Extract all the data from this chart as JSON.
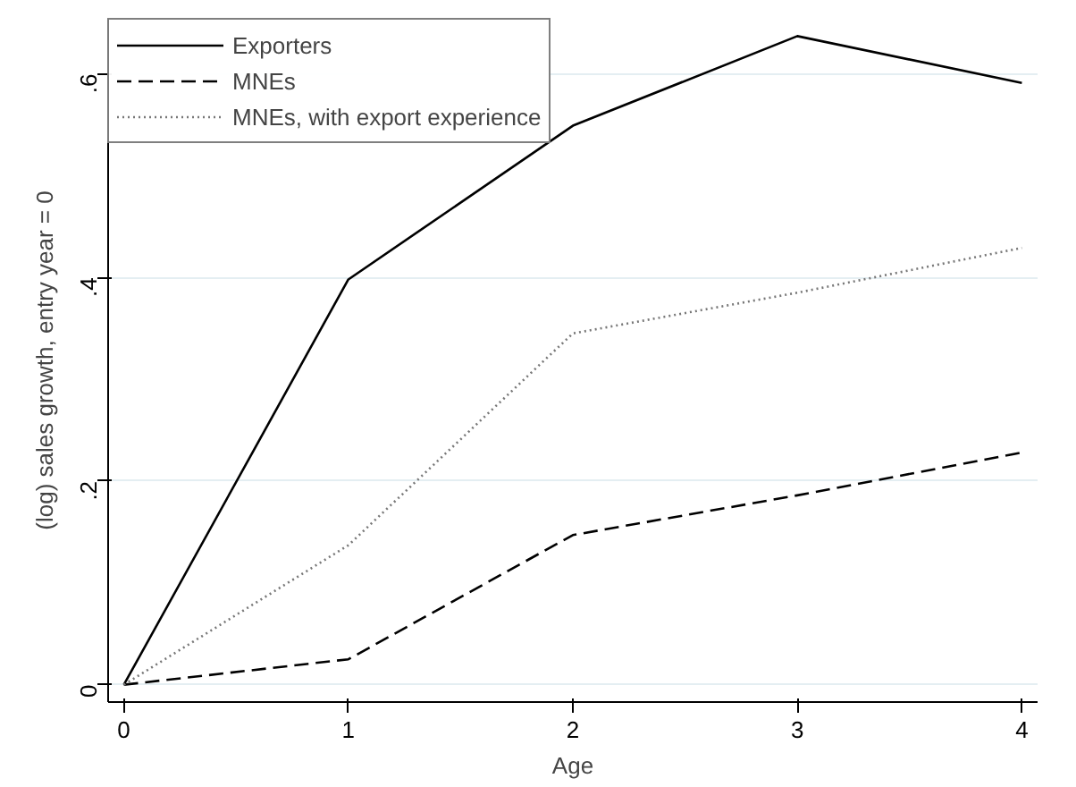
{
  "chart_data": {
    "type": "line",
    "xlabel": "Age",
    "ylabel": "(log) sales growth, entry year = 0",
    "x": [
      0,
      1,
      2,
      3,
      4
    ],
    "series": [
      {
        "name": "Exporters",
        "color": "#000000",
        "line_style": "solid",
        "values": [
          0,
          0.398,
          0.549,
          0.637,
          0.591
        ]
      },
      {
        "name": "MNEs",
        "color": "#000000",
        "line_style": "dashed",
        "values": [
          0,
          0.025,
          0.147,
          0.186,
          0.228
        ]
      },
      {
        "name": "MNEs, with export experience",
        "color": "#777777",
        "line_style": "dotted",
        "values": [
          0,
          0.137,
          0.345,
          0.385,
          0.429
        ]
      }
    ],
    "xlim": [
      -0.07,
      4.07
    ],
    "ylim": [
      -0.017,
      0.654
    ],
    "xticks": [
      0,
      1,
      2,
      3,
      4
    ],
    "yticks": [
      0,
      {
        "value": 0.2,
        "label": ".2"
      },
      {
        "value": 0.4,
        "label": ".4"
      },
      {
        "value": 0.6,
        "label": ".6"
      }
    ],
    "grid": "y",
    "legend": "top left",
    "marker": "none"
  }
}
